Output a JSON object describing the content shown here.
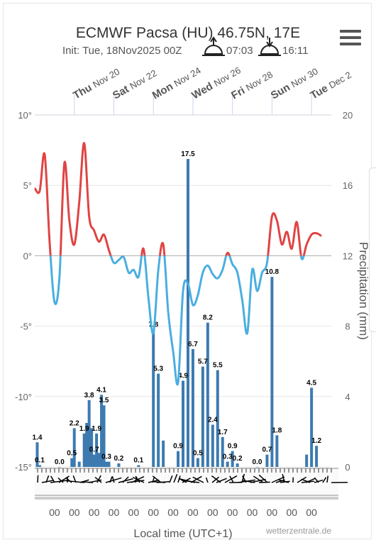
{
  "title": "ECMWF Pacsa (HU) 46.75N, 17E",
  "subtitle_init": "Init: Tue, 18Nov2025 00Z",
  "sunrise": "07:03",
  "sunset": "16:11",
  "icons": {
    "sunrise": "sunrise-icon",
    "sunset": "sunset-icon",
    "menu": "hamburger-menu-icon"
  },
  "colors": {
    "warm": "#e04444",
    "cold": "#4aaee0",
    "bars": "#3d7ab0",
    "wind": "#000000"
  },
  "credit": "wetterzentrale.de",
  "chart_data": {
    "type": "line",
    "xlabel": "Local time (UTC+1)",
    "x_range_days": [
      "2025-11-18",
      "2025-12-03"
    ],
    "day_labels": [
      {
        "day": "Thu",
        "date": "Nov 20",
        "x": "2025-11-20"
      },
      {
        "day": "Sat",
        "date": "Nov 22",
        "x": "2025-11-22"
      },
      {
        "day": "Mon",
        "date": "Nov 24",
        "x": "2025-11-24"
      },
      {
        "day": "Wed",
        "date": "Nov 26",
        "x": "2025-11-26"
      },
      {
        "day": "Fri",
        "date": "Nov 28",
        "x": "2025-11-28"
      },
      {
        "day": "Sun",
        "date": "Nov 30",
        "x": "2025-11-30"
      },
      {
        "day": "Tue",
        "date": "Dec 2",
        "x": "2025-12-02"
      }
    ],
    "bottom_tick_label": "00",
    "temperature": {
      "ylim": [
        -15,
        10
      ],
      "yticks": [
        "10°",
        "5°",
        "0°",
        "-5°",
        "-10°",
        "-15°"
      ],
      "threshold": 0,
      "series": [
        {
          "x": "2025-11-18 00:00",
          "y": 4.8
        },
        {
          "x": "2025-11-18 06:00",
          "y": 4.6
        },
        {
          "x": "2025-11-18 12:00",
          "y": 7.2
        },
        {
          "x": "2025-11-18 18:00",
          "y": 1.0
        },
        {
          "x": "2025-11-19 00:00",
          "y": -3.3
        },
        {
          "x": "2025-11-19 06:00",
          "y": -1.5
        },
        {
          "x": "2025-11-19 12:00",
          "y": 6.6
        },
        {
          "x": "2025-11-19 18:00",
          "y": 2.5
        },
        {
          "x": "2025-11-20 00:00",
          "y": 0.8
        },
        {
          "x": "2025-11-20 06:00",
          "y": 3.8
        },
        {
          "x": "2025-11-20 12:00",
          "y": 8.0
        },
        {
          "x": "2025-11-20 18:00",
          "y": 2.8
        },
        {
          "x": "2025-11-21 00:00",
          "y": 1.8
        },
        {
          "x": "2025-11-21 06:00",
          "y": 1.0
        },
        {
          "x": "2025-11-21 12:00",
          "y": 1.5
        },
        {
          "x": "2025-11-21 18:00",
          "y": 0.4
        },
        {
          "x": "2025-11-22 00:00",
          "y": -0.5
        },
        {
          "x": "2025-11-22 06:00",
          "y": -0.3
        },
        {
          "x": "2025-11-22 12:00",
          "y": -0.1
        },
        {
          "x": "2025-11-22 18:00",
          "y": -1.2
        },
        {
          "x": "2025-11-23 00:00",
          "y": -1.0
        },
        {
          "x": "2025-11-23 06:00",
          "y": -1.5
        },
        {
          "x": "2025-11-23 12:00",
          "y": 0.5
        },
        {
          "x": "2025-11-23 18:00",
          "y": -3.0
        },
        {
          "x": "2025-11-24 00:00",
          "y": -5.5
        },
        {
          "x": "2025-11-24 06:00",
          "y": -1.0
        },
        {
          "x": "2025-11-24 12:00",
          "y": 0.8
        },
        {
          "x": "2025-11-24 18:00",
          "y": -4.0
        },
        {
          "x": "2025-11-25 00:00",
          "y": -6.8
        },
        {
          "x": "2025-11-25 06:00",
          "y": -9.0
        },
        {
          "x": "2025-11-25 12:00",
          "y": -2.5
        },
        {
          "x": "2025-11-25 18:00",
          "y": -2.0
        },
        {
          "x": "2025-11-26 00:00",
          "y": -3.5
        },
        {
          "x": "2025-11-26 06:00",
          "y": -2.8
        },
        {
          "x": "2025-11-26 12:00",
          "y": -1.2
        },
        {
          "x": "2025-11-26 18:00",
          "y": -0.7
        },
        {
          "x": "2025-11-27 00:00",
          "y": -1.3
        },
        {
          "x": "2025-11-27 06:00",
          "y": -1.6
        },
        {
          "x": "2025-11-27 12:00",
          "y": -1.0
        },
        {
          "x": "2025-11-27 18:00",
          "y": 0.2
        },
        {
          "x": "2025-11-28 00:00",
          "y": -0.6
        },
        {
          "x": "2025-11-28 06:00",
          "y": -1.2
        },
        {
          "x": "2025-11-28 12:00",
          "y": -3.2
        },
        {
          "x": "2025-11-28 18:00",
          "y": -5.5
        },
        {
          "x": "2025-11-29 00:00",
          "y": -1.0
        },
        {
          "x": "2025-11-29 06:00",
          "y": -2.5
        },
        {
          "x": "2025-11-29 12:00",
          "y": -1.2
        },
        {
          "x": "2025-11-29 18:00",
          "y": -0.5
        },
        {
          "x": "2025-11-30 00:00",
          "y": 2.8
        },
        {
          "x": "2025-11-30 06:00",
          "y": 2.5
        },
        {
          "x": "2025-11-30 12:00",
          "y": 0.8
        },
        {
          "x": "2025-11-30 18:00",
          "y": 1.7
        },
        {
          "x": "2025-12-01 00:00",
          "y": 0.5
        },
        {
          "x": "2025-12-01 06:00",
          "y": 2.4
        },
        {
          "x": "2025-12-01 12:00",
          "y": -0.2
        },
        {
          "x": "2025-12-01 18:00",
          "y": 0.8
        },
        {
          "x": "2025-12-02 00:00",
          "y": 1.5
        },
        {
          "x": "2025-12-02 06:00",
          "y": 1.6
        },
        {
          "x": "2025-12-02 12:00",
          "y": 1.4
        }
      ]
    },
    "precipitation": {
      "type": "bar",
      "ylabel": "Precipitation (mm)",
      "ylim": [
        0,
        20
      ],
      "yticks": [
        "20",
        "16",
        "12",
        "8",
        "4",
        "0"
      ],
      "bars": [
        {
          "x": "2025-11-18 03:00",
          "y": 1.4,
          "label": "1.4"
        },
        {
          "x": "2025-11-18 06:00",
          "y": 0.1,
          "label": "0.1"
        },
        {
          "x": "2025-11-19 06:00",
          "y": 0.0,
          "label": "0.0"
        },
        {
          "x": "2025-11-19 21:00",
          "y": 0.5,
          "label": "0.5"
        },
        {
          "x": "2025-11-20 00:00",
          "y": 2.2,
          "label": "2.2"
        },
        {
          "x": "2025-11-20 06:00",
          "y": 0.3,
          "label": ""
        },
        {
          "x": "2025-11-20 12:00",
          "y": 1.9,
          "label": "1.9"
        },
        {
          "x": "2025-11-20 15:00",
          "y": 2.5,
          "label": ""
        },
        {
          "x": "2025-11-20 18:00",
          "y": 3.8,
          "label": "3.8"
        },
        {
          "x": "2025-11-20 21:00",
          "y": 2.2,
          "label": ""
        },
        {
          "x": "2025-11-21 00:00",
          "y": 0.7,
          "label": "0.7"
        },
        {
          "x": "2025-11-21 03:00",
          "y": 1.9,
          "label": "1.9"
        },
        {
          "x": "2025-11-21 06:00",
          "y": 0.8,
          "label": ""
        },
        {
          "x": "2025-11-21 09:00",
          "y": 4.1,
          "label": "4.1"
        },
        {
          "x": "2025-11-21 12:00",
          "y": 3.5,
          "label": "3.5"
        },
        {
          "x": "2025-11-21 15:00",
          "y": 0.3,
          "label": "0.3"
        },
        {
          "x": "2025-11-21 18:00",
          "y": 0.3,
          "label": ""
        },
        {
          "x": "2025-11-22 06:00",
          "y": 0.2,
          "label": "0.2"
        },
        {
          "x": "2025-11-23 06:00",
          "y": 0.1,
          "label": "0.1"
        },
        {
          "x": "2025-11-24 00:00",
          "y": 7.8,
          "label": "7.8"
        },
        {
          "x": "2025-11-24 06:00",
          "y": 5.3,
          "label": "5.3"
        },
        {
          "x": "2025-11-24 12:00",
          "y": 1.5,
          "label": ""
        },
        {
          "x": "2025-11-25 06:00",
          "y": 0.9,
          "label": "0.9"
        },
        {
          "x": "2025-11-25 12:00",
          "y": 4.9,
          "label": "4.9"
        },
        {
          "x": "2025-11-25 18:00",
          "y": 17.5,
          "label": "17.5"
        },
        {
          "x": "2025-11-26 00:00",
          "y": 6.7,
          "label": "6.7"
        },
        {
          "x": "2025-11-26 06:00",
          "y": 0.5,
          "label": "0.5"
        },
        {
          "x": "2025-11-26 12:00",
          "y": 5.7,
          "label": "5.7"
        },
        {
          "x": "2025-11-26 18:00",
          "y": 8.2,
          "label": "8.2"
        },
        {
          "x": "2025-11-27 00:00",
          "y": 2.4,
          "label": "2.4"
        },
        {
          "x": "2025-11-27 06:00",
          "y": 5.5,
          "label": "5.5"
        },
        {
          "x": "2025-11-27 12:00",
          "y": 1.7,
          "label": "1.7"
        },
        {
          "x": "2025-11-27 18:00",
          "y": 0.3,
          "label": "0.3"
        },
        {
          "x": "2025-11-28 00:00",
          "y": 0.9,
          "label": "0.9"
        },
        {
          "x": "2025-11-28 06:00",
          "y": 0.2,
          "label": "0.2"
        },
        {
          "x": "2025-11-29 06:00",
          "y": 0.0,
          "label": "0.0"
        },
        {
          "x": "2025-11-29 18:00",
          "y": 0.7,
          "label": "0.7"
        },
        {
          "x": "2025-11-30 00:00",
          "y": 10.8,
          "label": "10.8"
        },
        {
          "x": "2025-11-30 06:00",
          "y": 1.8,
          "label": "1.8"
        },
        {
          "x": "2025-12-01 18:00",
          "y": 0.7,
          "label": ""
        },
        {
          "x": "2025-12-02 00:00",
          "y": 4.5,
          "label": "4.5"
        },
        {
          "x": "2025-12-02 06:00",
          "y": 1.2,
          "label": "1.2"
        }
      ]
    },
    "wind_barbs": "wind-barb-row"
  }
}
